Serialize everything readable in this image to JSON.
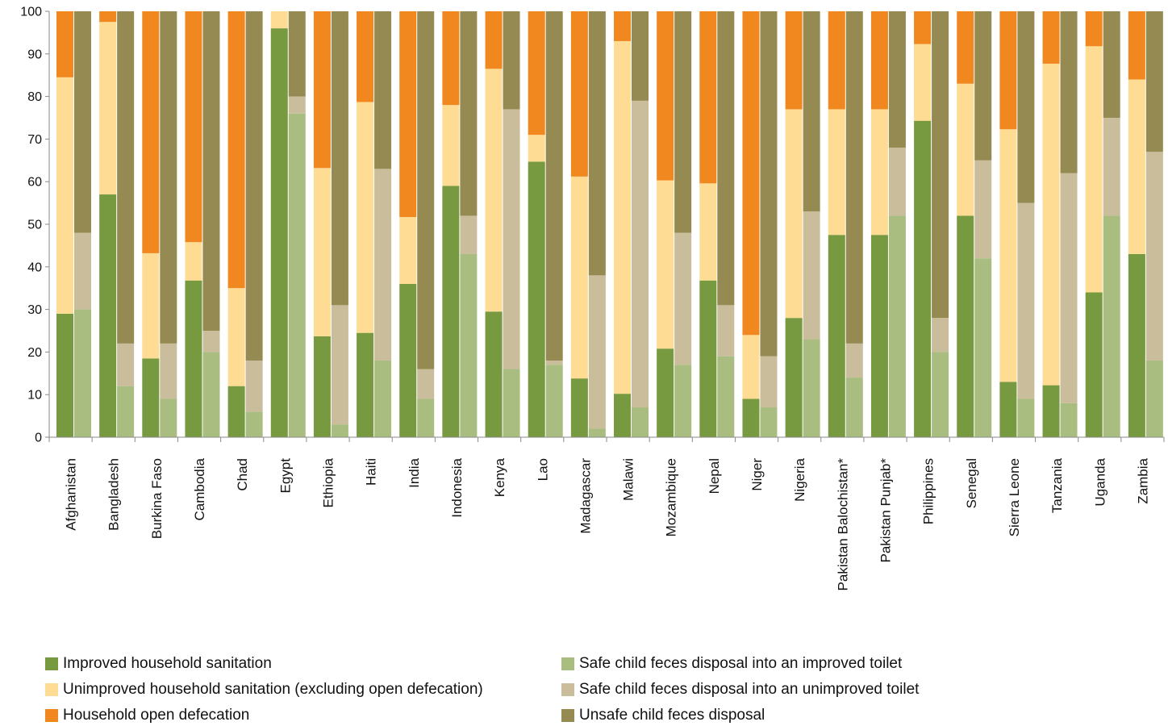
{
  "chart_data": {
    "type": "bar",
    "subtype": "paired-stacked-100",
    "ylim": [
      0,
      100
    ],
    "yticks": [
      0,
      10,
      20,
      30,
      40,
      50,
      60,
      70,
      80,
      90,
      100
    ],
    "grid": false,
    "legend_position": "bottom",
    "categories": [
      "Afghanistan",
      "Bangladesh",
      "Burkina Faso",
      "Cambodia",
      "Chad",
      "Egypt",
      "Ethiopia",
      "Haiti",
      "India",
      "Indonesia",
      "Kenya",
      "Lao",
      "Madagascar",
      "Malawi",
      "Mozambique",
      "Nepal",
      "Niger",
      "Nigeria",
      "Pakistan Balochistan*",
      "Pakistan Punjab*",
      "Philippines",
      "Senegal",
      "Sierra Leone",
      "Tanzania",
      "Uganda",
      "Zambia"
    ],
    "household_stack": [
      {
        "name": "Improved household sanitation",
        "color": "#77993f",
        "values": [
          29,
          57,
          18.5,
          36.8,
          12,
          96,
          23.7,
          24.5,
          36,
          59,
          29.5,
          64.7,
          13.8,
          10.2,
          20.8,
          36.8,
          9,
          28,
          47.5,
          47.5,
          74.3,
          52,
          13,
          12.2,
          34,
          43
        ]
      },
      {
        "name": "Unimproved household sanitation (excluding open defecation)",
        "color": "#fedc93",
        "values": [
          55.5,
          40.5,
          24.7,
          9,
          23,
          4,
          39.5,
          54.2,
          15.7,
          19,
          57,
          6.3,
          47.4,
          82.8,
          39.5,
          22.8,
          15,
          49,
          29.5,
          29.5,
          18,
          31,
          59.3,
          75.5,
          57.8,
          41
        ]
      },
      {
        "name": "Household open defecation",
        "color": "#f0871f",
        "values": [
          15.5,
          2.5,
          56.8,
          54.2,
          65,
          0,
          36.8,
          21.3,
          48.3,
          22,
          13.5,
          29,
          38.8,
          7,
          39.7,
          40.4,
          76,
          23,
          23,
          23,
          7.7,
          17,
          27.7,
          12.3,
          8.2,
          16
        ]
      }
    ],
    "disposal_stack": [
      {
        "name": "Safe child feces disposal into an improved toilet",
        "color": "#a8bd7f",
        "values": [
          30,
          12,
          9,
          20,
          6,
          76,
          3,
          18,
          9,
          43,
          16,
          17,
          2,
          7,
          17,
          19,
          7,
          23,
          14,
          52,
          20,
          42,
          9,
          8,
          52,
          18
        ]
      },
      {
        "name": "Safe child feces disposal into an unimproved toilet",
        "color": "#c9bd9c",
        "values": [
          18,
          10,
          13,
          5,
          12,
          4,
          28,
          45,
          7,
          9,
          61,
          1,
          36,
          72,
          31,
          12,
          12,
          30,
          8,
          16,
          8,
          23,
          46,
          54,
          23,
          49
        ]
      },
      {
        "name": "Unsafe child feces disposal",
        "color": "#958a51",
        "values": [
          52,
          78,
          78,
          75,
          82,
          20,
          69,
          37,
          84,
          48,
          23,
          82,
          62,
          21,
          52,
          69,
          81,
          47,
          78,
          32,
          72,
          35,
          45,
          38,
          25,
          33
        ]
      }
    ]
  },
  "legend": [
    {
      "label": "Improved household sanitation",
      "color": "#77993f"
    },
    {
      "label": "Unimproved household sanitation (excluding open defecation)",
      "color": "#fedc93"
    },
    {
      "label": "Household open defecation",
      "color": "#f0871f"
    },
    {
      "label": "Safe child feces disposal into an improved toilet",
      "color": "#a8bd7f"
    },
    {
      "label": "Safe child feces disposal into an unimproved toilet",
      "color": "#c9bd9c"
    },
    {
      "label": "Unsafe child feces disposal",
      "color": "#958a51"
    }
  ]
}
